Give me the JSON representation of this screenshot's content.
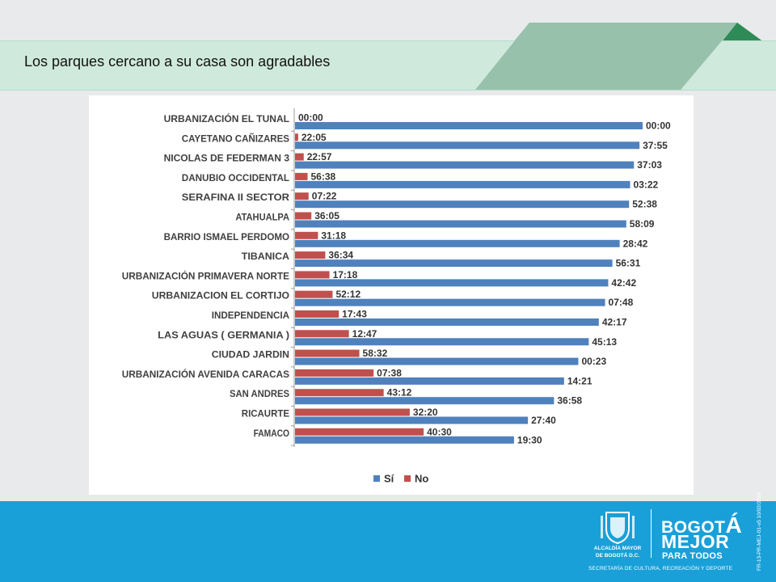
{
  "slide": {
    "title": "Los parques cercano a su casa son agradables"
  },
  "chart_data": {
    "type": "bar",
    "orientation": "horizontal",
    "title": "",
    "xlabel": "",
    "ylabel": "",
    "xlim": [
      0,
      100
    ],
    "grid": false,
    "legend": "bottom",
    "categories": [
      "URBANIZACIÓN EL TUNAL",
      "CAYETANO CAÑIZARES",
      "NICOLAS DE FEDERMAN 3",
      "DANUBIO OCCIDENTAL",
      "SERAFINA II SECTOR",
      "ATAHUALPA",
      "BARRIO ISMAEL PERDOMO",
      "TIBANICA",
      "URBANIZACIÓN PRIMAVERA NORTE",
      "URBANIZACION EL CORTIJO",
      "INDEPENDENCIA",
      "LAS AGUAS ( GERMANIA )",
      "CIUDAD JARDIN",
      "URBANIZACIÓN AVENIDA CARACAS",
      "SAN ANDRES",
      "RICAURTE",
      "FAMACO"
    ],
    "series": [
      {
        "name": "No",
        "color": "#c0504d",
        "values": [
          0.0,
          0.9,
          2.5,
          3.6,
          3.9,
          4.7,
          6.6,
          8.7,
          9.9,
          10.8,
          12.6,
          15.5,
          18.5,
          22.6,
          25.5,
          33.0,
          37.0
        ],
        "labels": [
          "00:00",
          "22:05",
          "22:57",
          "56:38",
          "07:22",
          "36:05",
          "31:18",
          "36:34",
          "17:18",
          "52:12",
          "17:43",
          "12:47",
          "58:32",
          "07:38",
          "43:12",
          "32:20",
          "40:30"
        ]
      },
      {
        "name": "Sí",
        "color": "#4f81bd",
        "values": [
          100.0,
          99.1,
          97.5,
          96.4,
          96.1,
          95.3,
          93.4,
          91.3,
          90.1,
          89.2,
          87.4,
          84.5,
          81.5,
          77.4,
          74.5,
          67.0,
          63.0
        ],
        "labels": [
          "00:00",
          "37:55",
          "37:03",
          "03:22",
          "52:38",
          "58:09",
          "28:42",
          "56:31",
          "42:42",
          "07:48",
          "42:17",
          "45:13",
          "00:23",
          "14:21",
          "36:58",
          "27:40",
          "19:30"
        ]
      }
    ]
  },
  "footer": {
    "alcaldia_line1": "ALCALDÍA MAYOR",
    "alcaldia_line2": "DE BOGOTÁ D.C.",
    "bogota_pre": "BOGOT",
    "bogota_accent": "Á",
    "mejor": "MEJOR",
    "para_todos": "PARA TODOS",
    "secretaria": "SECRETARÍA DE CULTURA, RECREACIÓN Y DEPORTE",
    "side_code": "FR-13-PR-MEJ-01-v5 10/02/2016"
  },
  "colors": {
    "footer_blue": "#1aa0d8",
    "title_band": "#cfeadd",
    "deco_green": "#97c1aa",
    "deco_dark_green": "#2e8b57"
  }
}
